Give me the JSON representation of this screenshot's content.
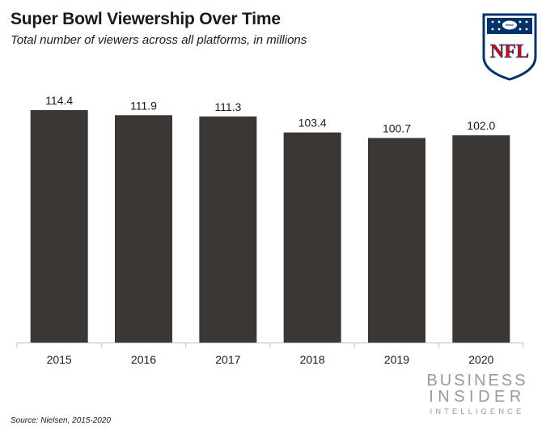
{
  "header": {
    "title": "Super Bowl Viewership Over Time",
    "subtitle": "Total number of viewers across all platforms, in millions"
  },
  "footer": {
    "source": "Source: Nielsen, 2015-2020"
  },
  "logos": {
    "nfl_text": "NFL",
    "business_insider_line1": "BUSINESS",
    "business_insider_line2": "INSIDER",
    "business_insider_line3": "INTELLIGENCE"
  },
  "colors": {
    "bar": "#3b3735",
    "nfl_blue": "#013369",
    "nfl_red": "#d50a0a",
    "logo_gray": "#9a9a9a"
  },
  "chart_data": {
    "type": "bar",
    "title": "Super Bowl Viewership Over Time",
    "subtitle": "Total number of viewers across all platforms, in millions",
    "xlabel": "",
    "ylabel": "",
    "categories": [
      "2015",
      "2016",
      "2017",
      "2018",
      "2019",
      "2020"
    ],
    "values": [
      114.4,
      111.9,
      111.3,
      103.4,
      100.7,
      102.0
    ],
    "value_labels": [
      "114.4",
      "111.9",
      "111.3",
      "103.4",
      "100.7",
      "102.0"
    ],
    "ylim": [
      0,
      114.4
    ],
    "grid": false,
    "legend": "none"
  }
}
